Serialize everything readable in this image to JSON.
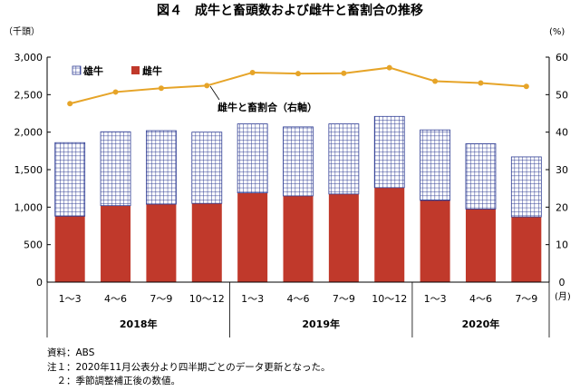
{
  "title": "図４　成牛と畜頭数および雌牛と畜割合の推移",
  "chart_data": {
    "type": "bar",
    "stacked": true,
    "categories": [
      "1～3",
      "4～6",
      "7～9",
      "10～12",
      "1～3",
      "4～6",
      "7～9",
      "10～12",
      "1～3",
      "4～6",
      "7～9"
    ],
    "year_groups": [
      {
        "label": "2018年",
        "span": 4
      },
      {
        "label": "2019年",
        "span": 4
      },
      {
        "label": "2020年",
        "span": 3
      }
    ],
    "series": [
      {
        "name": "雌牛",
        "type": "bar",
        "values": [
          880,
          1020,
          1040,
          1050,
          1190,
          1150,
          1175,
          1260,
          1090,
          975,
          870
        ]
      },
      {
        "name": "雄牛",
        "type": "bar",
        "values": [
          980,
          985,
          980,
          950,
          920,
          920,
          935,
          950,
          940,
          870,
          800
        ]
      },
      {
        "name": "雌牛と畜割合（右軸）",
        "type": "line",
        "axis": "right",
        "values": [
          47.6,
          50.7,
          51.7,
          52.4,
          55.9,
          55.6,
          55.7,
          57.2,
          53.6,
          53.1,
          52.2
        ]
      }
    ],
    "ylabel_left": "（千頭）",
    "ylabel_right": "(%)",
    "xunit": "(月)",
    "ylim_left": [
      0,
      3000
    ],
    "ylim_right": [
      0,
      60
    ],
    "yticks_left": [
      "0",
      "500",
      "1,000",
      "1,500",
      "2,000",
      "2,500",
      "3,000"
    ],
    "yticks_right": [
      "0",
      "10",
      "20",
      "30",
      "40",
      "50",
      "60"
    ],
    "grid": false,
    "legend": [
      "雄牛",
      "雌牛"
    ],
    "colors": {
      "female": "#c0392b",
      "male_grid": "#2f3d94",
      "line": "#e6a428",
      "axis": "#000000"
    }
  },
  "notes": [
    "資料：ABS",
    "注１：2020年11月公表分より四半期ごとのデータ更新となった。",
    "　２：季節調整補正後の数値。"
  ]
}
